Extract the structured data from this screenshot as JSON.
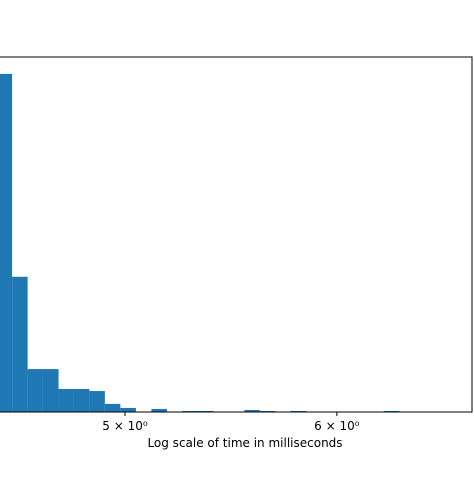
{
  "chart_data": {
    "type": "histogram",
    "xlabel": "Log scale of time in milliseconds",
    "xscale": "log",
    "color": "#1f77b4",
    "bins": [
      4.477,
      4.537,
      4.598,
      4.659,
      4.722,
      4.785,
      4.849,
      4.914,
      4.98,
      5.047,
      5.115,
      5.184,
      5.253,
      5.324,
      5.395,
      5.467,
      5.541,
      5.615,
      5.69,
      5.767,
      5.844,
      5.922,
      6.002,
      6.082,
      6.164,
      6.247,
      6.331
    ],
    "values": [
      100,
      40,
      12.7,
      12.7,
      6.8,
      6.8,
      6.2,
      2.4,
      1.2,
      0,
      0.9,
      0,
      0.3,
      0.3,
      0,
      0,
      0.6,
      0.3,
      0,
      0.3,
      0,
      0,
      0,
      0,
      0,
      0.3
    ],
    "xlim": [
      4.49,
      6.74
    ],
    "ylim": [
      0,
      105
    ],
    "xticks": [
      {
        "value": 5,
        "label": "5 × 10⁰"
      },
      {
        "value": 6,
        "label": "6 × 10⁰"
      }
    ]
  }
}
